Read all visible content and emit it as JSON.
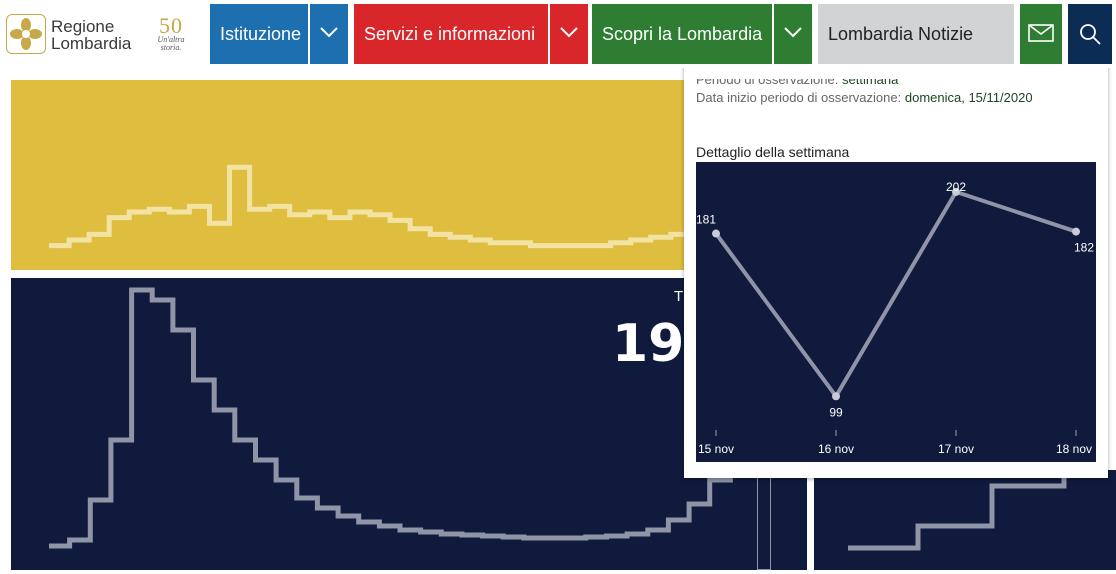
{
  "header": {
    "logo_line1": "Regione",
    "logo_line2": "Lombardia",
    "logo50_number": "50",
    "logo50_tagline_1": "Un'altra",
    "logo50_tagline_2": "storia.",
    "nav": [
      {
        "label": "Istituzione",
        "color": "#1d6fb0"
      },
      {
        "label": "Servizi e informazioni",
        "color": "#d8262b"
      },
      {
        "label": "Scopri la Lombardia",
        "color": "#2e7d32"
      },
      {
        "label": "Lombardia Notizie",
        "color": "#d1d3d4"
      }
    ],
    "mail_color": "#2e7d32",
    "search_color": "#0b2c55"
  },
  "dashboard": {
    "yellow_panel_color": "#dfbd3f",
    "navy_panel_color": "#0f1a3d",
    "kpi_label": "T",
    "kpi_value": "19"
  },
  "tooltip": {
    "period_label": "Periodo di osservazione:",
    "period_value": "settimana",
    "start_label": "Data inizio periodo di osservazione:",
    "start_value": "domenica, 15/11/2020",
    "detail_title": "Dettaglio della settimana"
  },
  "chart_data": {
    "type": "line",
    "title": "Dettaglio della settimana",
    "categories": [
      "15 nov",
      "16 nov",
      "17 nov",
      "18 nov"
    ],
    "values": [
      181,
      99,
      202,
      182
    ],
    "ylim": [
      80,
      210
    ],
    "grid": false,
    "data_labels": true
  },
  "background_series": {
    "yellow_step": [
      6,
      10,
      14,
      26,
      30,
      32,
      30,
      34,
      22,
      62,
      32,
      34,
      28,
      30,
      26,
      30,
      28,
      24,
      18,
      14,
      12,
      10,
      8,
      8,
      6,
      6,
      6,
      6,
      8,
      10,
      12,
      14,
      16
    ],
    "navy_step": [
      4,
      10,
      50,
      110,
      260,
      250,
      220,
      170,
      140,
      110,
      90,
      70,
      52,
      42,
      34,
      28,
      24,
      20,
      18,
      16,
      15,
      14,
      13,
      12,
      12,
      12,
      13,
      14,
      16,
      20,
      30,
      46,
      70,
      100
    ]
  }
}
